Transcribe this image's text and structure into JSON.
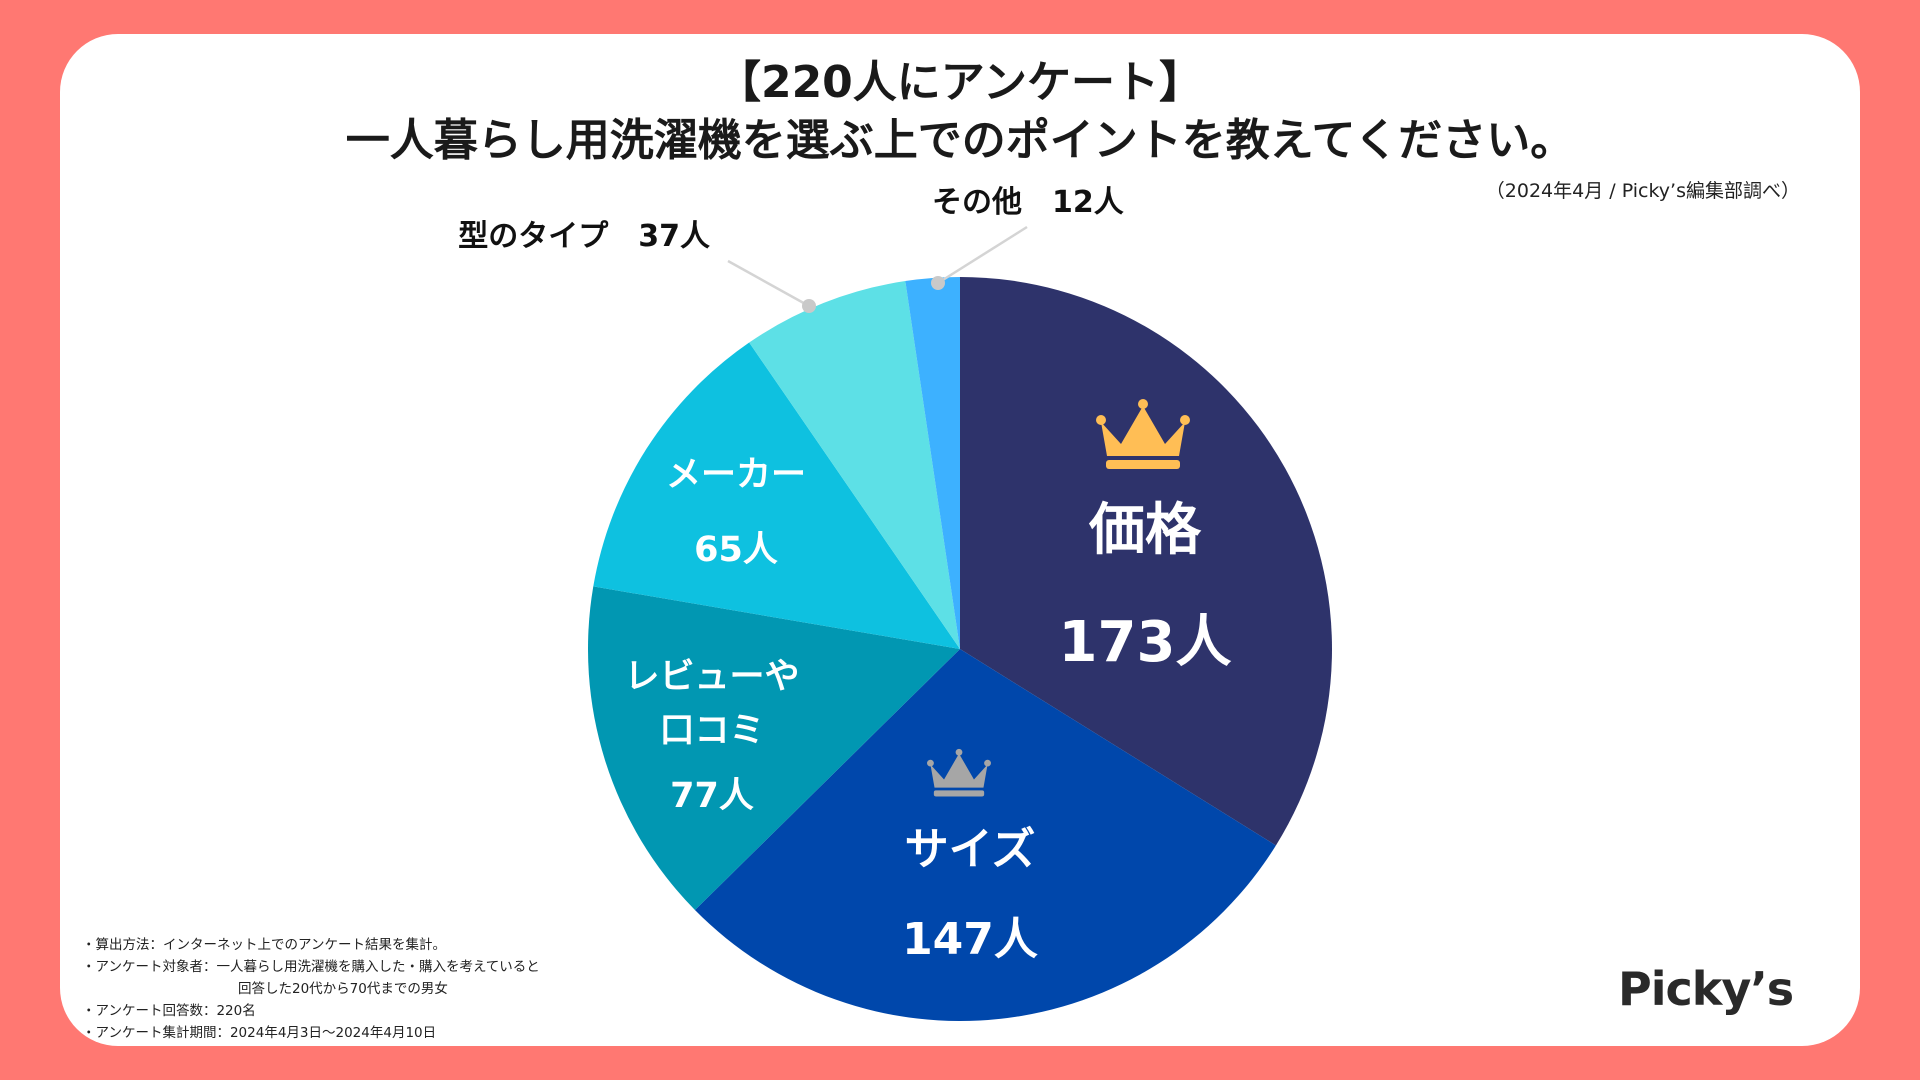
{
  "header": {
    "title_line1": "【220人にアンケート】",
    "title_line2": "一人暮らし用洗濯機を選ぶ上でのポイントを教えてください。",
    "source": "（2024年4月 / Picky’s編集部調べ）"
  },
  "chart_data": {
    "type": "pie",
    "title": "一人暮らし用洗濯機を選ぶ上でのポイントを教えてください。",
    "total": 220,
    "unit": "人",
    "slices": [
      {
        "label": "価格",
        "value": 173,
        "value_label": "173人",
        "color": "#2e336b",
        "inside": true,
        "rank": "gold"
      },
      {
        "label": "サイズ",
        "value": 147,
        "value_label": "147人",
        "color": "#0047ab",
        "inside": true,
        "rank": "silver"
      },
      {
        "label": "レビューや口コミ",
        "label_lines": [
          "レビューや",
          "口コミ"
        ],
        "value": 77,
        "value_label": "77人",
        "color": "#0197b2",
        "inside": true
      },
      {
        "label": "メーカー",
        "value": 65,
        "value_label": "65人",
        "color": "#0ec1e0",
        "inside": true
      },
      {
        "label": "型のタイプ",
        "value": 37,
        "value_label": "37人",
        "color": "#5de0e6",
        "inside": false,
        "callout": "型のタイプ　37人"
      },
      {
        "label": "その他",
        "value": 12,
        "value_label": "12人",
        "color": "#3db1ff",
        "inside": false,
        "callout": "その他　12人"
      }
    ],
    "crown_colors": {
      "gold": "#ffbe55",
      "silver": "#a6a6a6"
    },
    "leader_color": "#d4d4d4"
  },
  "notes": [
    "・算出方法：インターネット上でのアンケート結果を集計。",
    "・アンケート対象者：一人暮らし用洗濯機を購入した・購入を考えていると",
    "回答した20代から70代までの男女",
    "・アンケート回答数：220名",
    "・アンケート集計期間：2024年4月3日〜2024年4月10日"
  ],
  "brand": {
    "logo": "Picky’s"
  }
}
